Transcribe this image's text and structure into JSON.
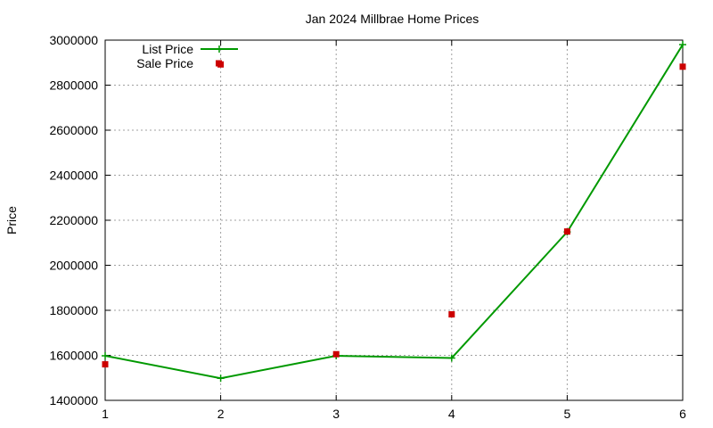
{
  "chart_data": {
    "type": "line",
    "title": "Jan 2024 Millbrae Home Prices",
    "xlabel": "",
    "ylabel": "Price",
    "x": [
      1,
      2,
      3,
      4,
      5,
      6
    ],
    "xlim": [
      1,
      6
    ],
    "ylim": [
      1400000,
      3000000
    ],
    "xticks": [
      "1",
      "2",
      "3",
      "4",
      "5",
      "6"
    ],
    "yticks": [
      "1400000",
      "1600000",
      "1800000",
      "2000000",
      "2200000",
      "2400000",
      "2600000",
      "2800000",
      "3000000"
    ],
    "grid": true,
    "legend_position": "top-left",
    "series": [
      {
        "name": "List Price",
        "style": "line with plus markers",
        "color": "#009900",
        "values": [
          1598000,
          1498000,
          1598000,
          1588000,
          2148000,
          2980000
        ]
      },
      {
        "name": "Sale Price",
        "style": "square markers",
        "color": "#cc0000",
        "values": [
          1560000,
          2892000,
          1605000,
          1782000,
          2150000,
          2882000
        ]
      }
    ]
  }
}
